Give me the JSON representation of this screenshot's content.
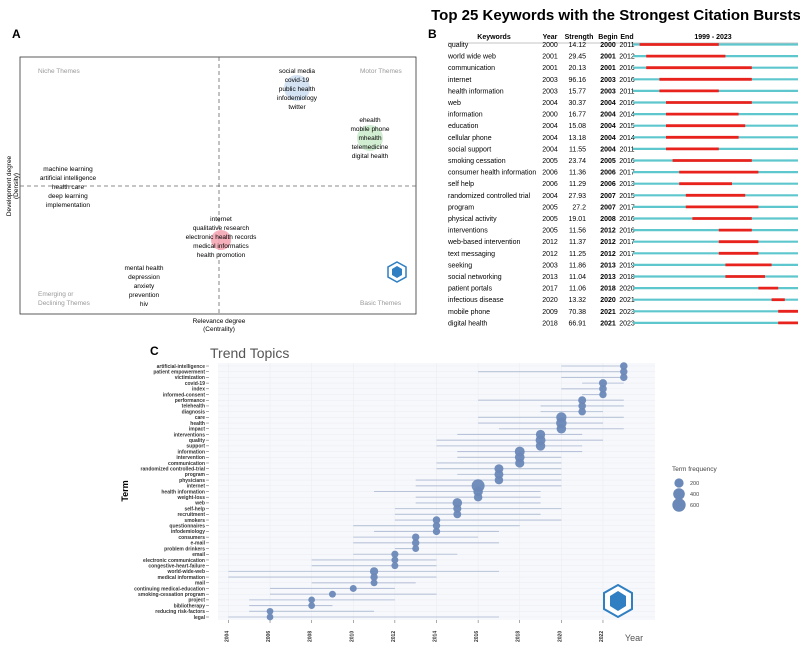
{
  "colors": {
    "burst_red": "#e8231e",
    "timeline_cyan": "#5ec7ce",
    "bubble_blue": "#6a88b8",
    "segment_gray": "#b8c3d9",
    "bubble_pink": "#f4a7b4",
    "bubble_lightblue": "#cfe0f3",
    "bubble_green": "#cdeccd",
    "logo_blue": "#2f7fc2"
  },
  "panels": {
    "a": {
      "letter": "A",
      "x_axis_label": "Relevance degree",
      "x_axis_sublabel": "(Centrality)",
      "y_axis_label": "Development degree",
      "y_axis_sublabel": "(Density)",
      "quadrants": {
        "niche": "Niche Themes",
        "motor": "Motor Themes",
        "emerging_1": "Emerging or",
        "emerging_2": "Declining Themes",
        "basic": "Basic Themes"
      },
      "cluster_top": [
        "social media",
        "covid-19",
        "public health",
        "infodemiology",
        "twitter"
      ],
      "cluster_right": [
        "ehealth",
        "mobile phone",
        "mhealth",
        "telemedicine",
        "digital health"
      ],
      "cluster_left": [
        "machine learning",
        "artificial intelligence",
        "health care",
        "deep learning",
        "implementation"
      ],
      "cluster_center": [
        "internet",
        "qualitative research",
        "electronic health records",
        "medical informatics",
        "health promotion"
      ],
      "cluster_bottom": [
        "mental health",
        "depression",
        "anxiety",
        "prevention",
        "hiv"
      ]
    },
    "b": {
      "letter": "B",
      "title": "Top 25 Keywords with the Strongest Citation Bursts",
      "headers": {
        "keywords": "Keywords",
        "year": "Year",
        "strength": "Strength",
        "begin": "Begin",
        "end": "End",
        "range": "1999 - 2023"
      }
    },
    "c": {
      "letter": "C",
      "title": "Trend Topics",
      "y_axis_label": "Term",
      "x_axis_label": "Year",
      "legend_title": "Term frequency"
    }
  },
  "chart_data": [
    {
      "type": "table",
      "name": "citation_bursts",
      "timeline_start": 1999,
      "timeline_end": 2023,
      "rows": [
        {
          "keyword": "quality",
          "year": "2000",
          "strength": "14.12",
          "begin": "2000",
          "end": "2011"
        },
        {
          "keyword": "world wide web",
          "year": "2001",
          "strength": "29.45",
          "begin": "2001",
          "end": "2012"
        },
        {
          "keyword": "communication",
          "year": "2001",
          "strength": "20.13",
          "begin": "2001",
          "end": "2016"
        },
        {
          "keyword": "internet",
          "year": "2003",
          "strength": "96.16",
          "begin": "2003",
          "end": "2016"
        },
        {
          "keyword": "health information",
          "year": "2003",
          "strength": "15.77",
          "begin": "2003",
          "end": "2011"
        },
        {
          "keyword": "web",
          "year": "2004",
          "strength": "30.37",
          "begin": "2004",
          "end": "2016"
        },
        {
          "keyword": "information",
          "year": "2000",
          "strength": "16.77",
          "begin": "2004",
          "end": "2014"
        },
        {
          "keyword": "education",
          "year": "2004",
          "strength": "15.08",
          "begin": "2004",
          "end": "2015"
        },
        {
          "keyword": "cellular phone",
          "year": "2004",
          "strength": "13.18",
          "begin": "2004",
          "end": "2014"
        },
        {
          "keyword": "social support",
          "year": "2004",
          "strength": "11.55",
          "begin": "2004",
          "end": "2011"
        },
        {
          "keyword": "smoking cessation",
          "year": "2005",
          "strength": "23.74",
          "begin": "2005",
          "end": "2016"
        },
        {
          "keyword": "consumer health information",
          "year": "2006",
          "strength": "11.36",
          "begin": "2006",
          "end": "2017"
        },
        {
          "keyword": "self help",
          "year": "2006",
          "strength": "11.29",
          "begin": "2006",
          "end": "2013"
        },
        {
          "keyword": "randomized controlled trial",
          "year": "2004",
          "strength": "27.93",
          "begin": "2007",
          "end": "2015"
        },
        {
          "keyword": "program",
          "year": "2005",
          "strength": "27.2",
          "begin": "2007",
          "end": "2017"
        },
        {
          "keyword": "physical activity",
          "year": "2005",
          "strength": "19.01",
          "begin": "2008",
          "end": "2016"
        },
        {
          "keyword": "interventions",
          "year": "2005",
          "strength": "11.56",
          "begin": "2012",
          "end": "2016"
        },
        {
          "keyword": "web-based intervention",
          "year": "2012",
          "strength": "11.37",
          "begin": "2012",
          "end": "2017"
        },
        {
          "keyword": "text messaging",
          "year": "2012",
          "strength": "11.25",
          "begin": "2012",
          "end": "2017"
        },
        {
          "keyword": "seeking",
          "year": "2003",
          "strength": "11.86",
          "begin": "2013",
          "end": "2019"
        },
        {
          "keyword": "social networking",
          "year": "2013",
          "strength": "11.04",
          "begin": "2013",
          "end": "2018"
        },
        {
          "keyword": "patient portals",
          "year": "2017",
          "strength": "11.06",
          "begin": "2018",
          "end": "2020"
        },
        {
          "keyword": "infectious disease",
          "year": "2020",
          "strength": "13.32",
          "begin": "2020",
          "end": "2021"
        },
        {
          "keyword": "mobile phone",
          "year": "2009",
          "strength": "70.38",
          "begin": "2021",
          "end": "2023"
        },
        {
          "keyword": "digital health",
          "year": "2018",
          "strength": "66.91",
          "begin": "2021",
          "end": "2023"
        }
      ]
    },
    {
      "type": "scatter",
      "name": "trend_topics",
      "title": "Trend Topics",
      "xlabel": "Year",
      "ylabel": "Term",
      "xlim": [
        2003.5,
        2024.5
      ],
      "x_ticks": [
        2004,
        2006,
        2008,
        2010,
        2012,
        2014,
        2016,
        2018,
        2020,
        2022
      ],
      "legend": {
        "title": "Term frequency",
        "sizes": [
          200,
          400,
          600
        ]
      },
      "points": [
        {
          "term": "artificial-intelligence",
          "start": 2020,
          "end": 2023,
          "year": 2023,
          "freq": 100
        },
        {
          "term": "patient empowerment",
          "start": 2016,
          "end": 2023,
          "year": 2023,
          "freq": 90
        },
        {
          "term": "victimization",
          "start": 2020,
          "end": 2023,
          "year": 2023,
          "freq": 90
        },
        {
          "term": "covid-19",
          "start": 2021,
          "end": 2023,
          "year": 2022,
          "freq": 120
        },
        {
          "term": "index",
          "start": 2020,
          "end": 2022,
          "year": 2022,
          "freq": 100
        },
        {
          "term": "informed-consent",
          "start": 2021,
          "end": 2022,
          "year": 2022,
          "freq": 90
        },
        {
          "term": "performance",
          "start": 2016,
          "end": 2023,
          "year": 2021,
          "freq": 120
        },
        {
          "term": "telehealth",
          "start": 2019,
          "end": 2023,
          "year": 2021,
          "freq": 100
        },
        {
          "term": "diagnosis",
          "start": 2019,
          "end": 2022,
          "year": 2021,
          "freq": 100
        },
        {
          "term": "care",
          "start": 2016,
          "end": 2023,
          "year": 2020,
          "freq": 280
        },
        {
          "term": "health",
          "start": 2016,
          "end": 2022,
          "year": 2020,
          "freq": 300
        },
        {
          "term": "impact",
          "start": 2017,
          "end": 2023,
          "year": 2020,
          "freq": 220
        },
        {
          "term": "interventions",
          "start": 2015,
          "end": 2021,
          "year": 2019,
          "freq": 200
        },
        {
          "term": "quality",
          "start": 2014,
          "end": 2022,
          "year": 2019,
          "freq": 250
        },
        {
          "term": "support",
          "start": 2014,
          "end": 2021,
          "year": 2019,
          "freq": 220
        },
        {
          "term": "information",
          "start": 2015,
          "end": 2021,
          "year": 2018,
          "freq": 250
        },
        {
          "term": "intervention",
          "start": 2015,
          "end": 2020,
          "year": 2018,
          "freq": 230
        },
        {
          "term": "communication",
          "start": 2014,
          "end": 2020,
          "year": 2018,
          "freq": 200
        },
        {
          "term": "randomized controlled-trial",
          "start": 2014,
          "end": 2020,
          "year": 2017,
          "freq": 180
        },
        {
          "term": "program",
          "start": 2015,
          "end": 2020,
          "year": 2017,
          "freq": 180
        },
        {
          "term": "physicians",
          "start": 2013,
          "end": 2020,
          "year": 2017,
          "freq": 150
        },
        {
          "term": "internet",
          "start": 2013,
          "end": 2020,
          "year": 2016,
          "freq": 550
        },
        {
          "term": "health information",
          "start": 2011,
          "end": 2019,
          "year": 2016,
          "freq": 220
        },
        {
          "term": "weight-loss",
          "start": 2013,
          "end": 2019,
          "year": 2016,
          "freq": 150
        },
        {
          "term": "web",
          "start": 2013,
          "end": 2019,
          "year": 2015,
          "freq": 220
        },
        {
          "term": "self-help",
          "start": 2012,
          "end": 2020,
          "year": 2015,
          "freq": 130
        },
        {
          "term": "recruitment",
          "start": 2012,
          "end": 2019,
          "year": 2015,
          "freq": 110
        },
        {
          "term": "smokers",
          "start": 2012,
          "end": 2020,
          "year": 2014,
          "freq": 100
        },
        {
          "term": "questionnaires",
          "start": 2010,
          "end": 2018,
          "year": 2014,
          "freq": 90
        },
        {
          "term": "infodemiology",
          "start": 2011,
          "end": 2017,
          "year": 2014,
          "freq": 90
        },
        {
          "term": "consumers",
          "start": 2010,
          "end": 2016,
          "year": 2013,
          "freq": 90
        },
        {
          "term": "e-mail",
          "start": 2010,
          "end": 2017,
          "year": 2013,
          "freq": 90
        },
        {
          "term": "problem drinkers",
          "start": 2012,
          "end": 2013,
          "year": 2013,
          "freq": 70
        },
        {
          "term": "email",
          "start": 2010,
          "end": 2015,
          "year": 2012,
          "freq": 80
        },
        {
          "term": "electronic communication",
          "start": 2008,
          "end": 2014,
          "year": 2012,
          "freq": 70
        },
        {
          "term": "congestive-heart-failure",
          "start": 2008,
          "end": 2014,
          "year": 2012,
          "freq": 70
        },
        {
          "term": "world-wide-web",
          "start": 2004,
          "end": 2017,
          "year": 2011,
          "freq": 140
        },
        {
          "term": "medical information",
          "start": 2004,
          "end": 2014,
          "year": 2011,
          "freq": 90
        },
        {
          "term": "mail",
          "start": 2008,
          "end": 2013,
          "year": 2011,
          "freq": 70
        },
        {
          "term": "continuing medical-education",
          "start": 2006,
          "end": 2012,
          "year": 2010,
          "freq": 70
        },
        {
          "term": "smoking-cessation program",
          "start": 2006,
          "end": 2014,
          "year": 2009,
          "freq": 70
        },
        {
          "term": "project",
          "start": 2005,
          "end": 2012,
          "year": 2008,
          "freq": 60
        },
        {
          "term": "bibliotherapy",
          "start": 2005,
          "end": 2009,
          "year": 2008,
          "freq": 60
        },
        {
          "term": "reducing risk-factors",
          "start": 2005,
          "end": 2011,
          "year": 2006,
          "freq": 60
        },
        {
          "term": "legal",
          "start": 2004,
          "end": 2017,
          "year": 2006,
          "freq": 60
        }
      ]
    }
  ]
}
